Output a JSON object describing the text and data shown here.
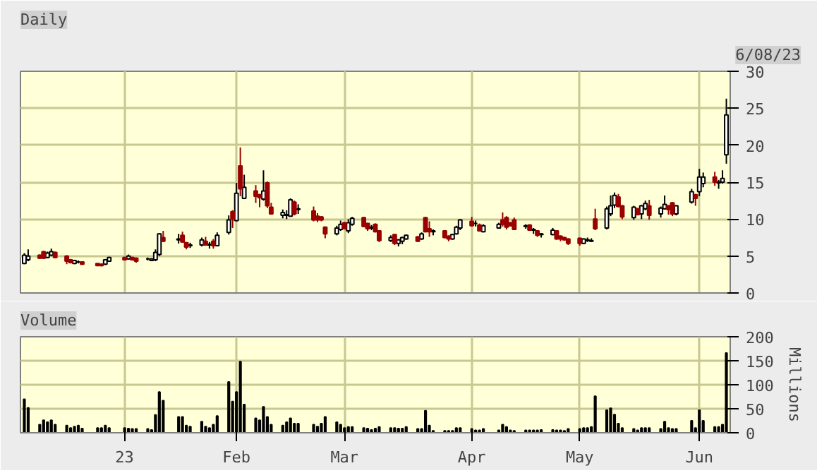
{
  "chart_data": [
    {
      "type": "candlestick",
      "title": "Daily",
      "annotations": [
        "6/08/23"
      ],
      "x": [
        "2022-12-08",
        "2022-12-09",
        "2022-12-12",
        "2022-12-13",
        "2022-12-14",
        "2022-12-15",
        "2022-12-16",
        "2022-12-19",
        "2022-12-20",
        "2022-12-21",
        "2022-12-22",
        "2022-12-23",
        "2022-12-27",
        "2022-12-28",
        "2022-12-29",
        "2022-12-30",
        "2023-01-03",
        "2023-01-04",
        "2023-01-05",
        "2023-01-06",
        "2023-01-09",
        "2023-01-10",
        "2023-01-11",
        "2023-01-12",
        "2023-01-13",
        "2023-01-17",
        "2023-01-18",
        "2023-01-19",
        "2023-01-20",
        "2023-01-23",
        "2023-01-24",
        "2023-01-25",
        "2023-01-26",
        "2023-01-27",
        "2023-01-30",
        "2023-01-31",
        "2023-02-01",
        "2023-02-02",
        "2023-02-03",
        "2023-02-06",
        "2023-02-07",
        "2023-02-08",
        "2023-02-09",
        "2023-02-10",
        "2023-02-13",
        "2023-02-14",
        "2023-02-15",
        "2023-02-16",
        "2023-02-17",
        "2023-02-21",
        "2023-02-22",
        "2023-02-23",
        "2023-02-24",
        "2023-02-27",
        "2023-02-28",
        "2023-03-01",
        "2023-03-02",
        "2023-03-03",
        "2023-03-06",
        "2023-03-07",
        "2023-03-08",
        "2023-03-09",
        "2023-03-10",
        "2023-03-13",
        "2023-03-14",
        "2023-03-15",
        "2023-03-16",
        "2023-03-17",
        "2023-03-20",
        "2023-03-21",
        "2023-03-22",
        "2023-03-23",
        "2023-03-24",
        "2023-03-27",
        "2023-03-28",
        "2023-03-29",
        "2023-03-30",
        "2023-03-31",
        "2023-04-03",
        "2023-04-04",
        "2023-04-05",
        "2023-04-06",
        "2023-04-10",
        "2023-04-11",
        "2023-04-12",
        "2023-04-13",
        "2023-04-14",
        "2023-04-17",
        "2023-04-18",
        "2023-04-19",
        "2023-04-20",
        "2023-04-21",
        "2023-04-24",
        "2023-04-25",
        "2023-04-26",
        "2023-04-27",
        "2023-04-28",
        "2023-05-01",
        "2023-05-02",
        "2023-05-03",
        "2023-05-04",
        "2023-05-05",
        "2023-05-08",
        "2023-05-09",
        "2023-05-10",
        "2023-05-11",
        "2023-05-12",
        "2023-05-15",
        "2023-05-16",
        "2023-05-17",
        "2023-05-18",
        "2023-05-19",
        "2023-05-22",
        "2023-05-23",
        "2023-05-24",
        "2023-05-25",
        "2023-05-26",
        "2023-05-30",
        "2023-05-31",
        "2023-06-01",
        "2023-06-02",
        "2023-06-05",
        "2023-06-06",
        "2023-06-07",
        "2023-06-08"
      ],
      "ohlc": [
        [
          4.0,
          5.4,
          3.9,
          5.1
        ],
        [
          4.5,
          5.9,
          4.3,
          5.0
        ],
        [
          5.1,
          5.2,
          4.6,
          4.7
        ],
        [
          5.6,
          5.7,
          4.6,
          4.7
        ],
        [
          4.8,
          5.6,
          4.7,
          5.4
        ],
        [
          5.1,
          6.0,
          5.0,
          5.6
        ],
        [
          5.5,
          5.6,
          4.7,
          4.8
        ],
        [
          5.0,
          5.1,
          3.9,
          4.3
        ],
        [
          4.5,
          4.6,
          4.0,
          4.1
        ],
        [
          4.0,
          4.5,
          3.9,
          4.4
        ],
        [
          4.2,
          4.4,
          4.0,
          4.2
        ],
        [
          4.2,
          4.2,
          3.9,
          3.9
        ],
        [
          4.0,
          4.0,
          3.7,
          3.7
        ],
        [
          3.9,
          4.0,
          3.6,
          3.7
        ],
        [
          3.9,
          4.6,
          3.8,
          4.5
        ],
        [
          4.3,
          4.9,
          4.2,
          4.8
        ],
        [
          4.8,
          4.9,
          4.4,
          4.5
        ],
        [
          4.6,
          5.2,
          4.5,
          5.0
        ],
        [
          4.8,
          4.9,
          4.4,
          4.5
        ],
        [
          4.7,
          4.8,
          4.1,
          4.3
        ],
        [
          4.6,
          4.8,
          4.4,
          4.6
        ],
        [
          4.4,
          4.7,
          4.3,
          4.6
        ],
        [
          4.5,
          5.9,
          4.3,
          5.5
        ],
        [
          5.2,
          8.1,
          5.0,
          8.0
        ],
        [
          7.5,
          8.4,
          6.9,
          7.0
        ],
        [
          7.2,
          8.0,
          6.7,
          7.3
        ],
        [
          7.8,
          8.3,
          6.8,
          6.9
        ],
        [
          6.8,
          6.9,
          5.9,
          6.2
        ],
        [
          6.4,
          6.8,
          6.1,
          6.5
        ],
        [
          6.5,
          7.5,
          6.3,
          7.2
        ],
        [
          7.0,
          7.6,
          6.4,
          6.5
        ],
        [
          6.5,
          6.9,
          6.0,
          6.6
        ],
        [
          7.0,
          7.3,
          6.0,
          6.4
        ],
        [
          6.4,
          8.2,
          6.3,
          7.8
        ],
        [
          8.2,
          10.5,
          7.9,
          9.9
        ],
        [
          11.0,
          11.2,
          8.8,
          10.0
        ],
        [
          9.8,
          14.9,
          9.7,
          13.5
        ],
        [
          17.2,
          19.7,
          13.1,
          14.1
        ],
        [
          12.8,
          16.0,
          12.7,
          14.3
        ],
        [
          13.8,
          14.6,
          12.2,
          13.1
        ],
        [
          13.3,
          13.4,
          11.6,
          12.9
        ],
        [
          12.7,
          16.6,
          12.5,
          13.8
        ],
        [
          14.9,
          15.1,
          11.5,
          11.8
        ],
        [
          11.6,
          12.2,
          10.6,
          10.7
        ],
        [
          10.5,
          11.3,
          10.1,
          10.9
        ],
        [
          10.5,
          11.2,
          10.0,
          10.6
        ],
        [
          10.4,
          12.8,
          10.3,
          12.6
        ],
        [
          12.3,
          12.5,
          10.5,
          10.7
        ],
        [
          11.3,
          12.0,
          10.7,
          11.4
        ],
        [
          11.1,
          11.7,
          9.7,
          9.9
        ],
        [
          10.4,
          10.8,
          9.6,
          9.9
        ],
        [
          10.3,
          10.4,
          9.7,
          9.9
        ],
        [
          8.9,
          9.0,
          7.4,
          8.0
        ],
        [
          8.0,
          9.1,
          7.8,
          8.8
        ],
        [
          8.6,
          9.8,
          8.4,
          9.3
        ],
        [
          9.5,
          9.6,
          8.6,
          8.7
        ],
        [
          8.4,
          10.0,
          8.1,
          9.5
        ],
        [
          9.3,
          10.3,
          9.1,
          10.1
        ],
        [
          10.2,
          10.3,
          8.9,
          9.0
        ],
        [
          9.4,
          9.5,
          8.4,
          8.7
        ],
        [
          8.8,
          9.2,
          8.5,
          8.9
        ],
        [
          9.3,
          9.4,
          8.2,
          8.3
        ],
        [
          8.4,
          8.5,
          6.9,
          7.1
        ],
        [
          7.1,
          7.8,
          6.9,
          7.5
        ],
        [
          7.9,
          8.0,
          6.5,
          6.7
        ],
        [
          6.7,
          7.3,
          6.3,
          7.2
        ],
        [
          7.0,
          7.6,
          6.6,
          7.5
        ],
        [
          7.3,
          7.9,
          7.2,
          7.8
        ],
        [
          7.6,
          7.7,
          6.9,
          7.0
        ],
        [
          7.3,
          8.2,
          7.2,
          8.0
        ],
        [
          10.2,
          10.3,
          8.2,
          8.3
        ],
        [
          8.7,
          9.7,
          7.6,
          8.3
        ],
        [
          8.3,
          8.6,
          7.8,
          8.4
        ],
        [
          8.4,
          8.5,
          7.4,
          7.5
        ],
        [
          7.7,
          7.8,
          7.0,
          7.3
        ],
        [
          7.3,
          8.0,
          7.2,
          7.9
        ],
        [
          8.0,
          9.1,
          7.9,
          8.9
        ],
        [
          8.8,
          10.0,
          8.5,
          9.9
        ],
        [
          9.7,
          10.3,
          9.0,
          9.1
        ],
        [
          9.4,
          9.8,
          9.0,
          9.4
        ],
        [
          9.2,
          9.4,
          8.3,
          8.4
        ],
        [
          8.3,
          9.3,
          8.2,
          9.1
        ],
        [
          8.8,
          9.5,
          8.7,
          9.3
        ],
        [
          9.9,
          10.9,
          9.0,
          9.3
        ],
        [
          10.2,
          10.4,
          8.6,
          8.9
        ],
        [
          9.5,
          9.6,
          9.0,
          9.1
        ],
        [
          9.9,
          10.2,
          8.5,
          8.6
        ],
        [
          9.0,
          9.3,
          8.7,
          9.1
        ],
        [
          9.2,
          9.3,
          8.4,
          8.5
        ],
        [
          8.5,
          8.8,
          8.0,
          8.6
        ],
        [
          8.4,
          8.5,
          7.6,
          7.8
        ],
        [
          7.9,
          8.1,
          7.5,
          8.0
        ],
        [
          7.9,
          8.8,
          7.8,
          8.5
        ],
        [
          8.4,
          8.5,
          7.2,
          7.3
        ],
        [
          7.7,
          7.8,
          7.0,
          7.3
        ],
        [
          7.5,
          7.6,
          7.1,
          7.2
        ],
        [
          7.3,
          7.4,
          6.5,
          6.7
        ],
        [
          7.4,
          7.5,
          6.4,
          6.7
        ],
        [
          6.7,
          7.4,
          6.6,
          7.3
        ],
        [
          7.1,
          7.5,
          6.9,
          7.2
        ],
        [
          7.0,
          7.4,
          6.9,
          7.1
        ],
        [
          10.0,
          11.4,
          8.5,
          8.7
        ],
        [
          8.8,
          11.7,
          8.6,
          11.4
        ],
        [
          10.7,
          13.2,
          10.4,
          11.8
        ],
        [
          11.9,
          13.6,
          11.5,
          13.2
        ],
        [
          13.0,
          13.4,
          11.6,
          11.7
        ],
        [
          11.8,
          11.9,
          10.0,
          10.3
        ],
        [
          10.2,
          11.8,
          9.9,
          11.6
        ],
        [
          11.4,
          11.5,
          10.5,
          10.6
        ],
        [
          10.7,
          11.9,
          10.0,
          11.8
        ],
        [
          11.4,
          12.5,
          11.2,
          12.1
        ],
        [
          11.8,
          12.6,
          9.9,
          10.5
        ],
        [
          10.7,
          11.7,
          10.2,
          11.5
        ],
        [
          11.4,
          13.2,
          11.3,
          12.0
        ],
        [
          11.8,
          11.9,
          10.6,
          11.3
        ],
        [
          12.2,
          12.3,
          10.4,
          10.7
        ],
        [
          10.7,
          11.9,
          10.5,
          11.8
        ],
        [
          12.3,
          14.1,
          12.1,
          13.7
        ],
        [
          13.3,
          13.4,
          11.8,
          12.8
        ],
        [
          13.7,
          16.8,
          13.1,
          15.7
        ],
        [
          14.8,
          16.3,
          14.3,
          15.7
        ],
        [
          15.7,
          16.4,
          14.5,
          15.0
        ],
        [
          14.9,
          15.3,
          14.1,
          15.0
        ],
        [
          15.0,
          16.6,
          14.8,
          15.5
        ],
        [
          18.7,
          26.3,
          17.5,
          24.1
        ]
      ],
      "xlim": [
        "2022-12-07",
        "2023-06-09"
      ],
      "xticks": [
        {
          "value": "2023-01-03",
          "label": null
        },
        {
          "value": "2023-02-01",
          "label": null
        },
        {
          "value": "2023-03-01",
          "label": null
        },
        {
          "value": "2023-04-03",
          "label": null
        },
        {
          "value": "2023-05-01",
          "label": null
        },
        {
          "value": "2023-06-01",
          "label": null
        }
      ],
      "ylim": [
        0,
        30
      ],
      "yticks": [
        0,
        5,
        10,
        15,
        20,
        25,
        30
      ],
      "grid": true,
      "tick_labels": "y"
    },
    {
      "type": "bar",
      "title": "Volume",
      "ylabel": "Millions",
      "series": [
        {
          "color": "#000000",
          "values": [
            70,
            52,
            17,
            26,
            22,
            26,
            17,
            15,
            10,
            13,
            15,
            9,
            10,
            10,
            15,
            10,
            10,
            9,
            8,
            8,
            8,
            6,
            37,
            85,
            67,
            33,
            33,
            15,
            13,
            23,
            13,
            10,
            17,
            35,
            106,
            65,
            85,
            148,
            59,
            30,
            26,
            54,
            33,
            17,
            15,
            22,
            30,
            19,
            19,
            17,
            13,
            19,
            33,
            22,
            17,
            10,
            12,
            12,
            10,
            9,
            6,
            9,
            12,
            10,
            10,
            9,
            9,
            12,
            8,
            8,
            46,
            15,
            4,
            4,
            4,
            4,
            10,
            10,
            8,
            5,
            5,
            8,
            5,
            17,
            12,
            5,
            4,
            5,
            5,
            5,
            5,
            6,
            6,
            5,
            5,
            4,
            8,
            8,
            10,
            10,
            12,
            76,
            47,
            51,
            38,
            19,
            10,
            8,
            5,
            10,
            10,
            10,
            8,
            23,
            10,
            8,
            8,
            25,
            10,
            47,
            25,
            12,
            12,
            17,
            166
          ]
        }
      ],
      "x": [
        "2022-12-08",
        "2022-12-09",
        "2022-12-12",
        "2022-12-13",
        "2022-12-14",
        "2022-12-15",
        "2022-12-16",
        "2022-12-19",
        "2022-12-20",
        "2022-12-21",
        "2022-12-22",
        "2022-12-23",
        "2022-12-27",
        "2022-12-28",
        "2022-12-29",
        "2022-12-30",
        "2023-01-03",
        "2023-01-04",
        "2023-01-05",
        "2023-01-06",
        "2023-01-09",
        "2023-01-10",
        "2023-01-11",
        "2023-01-12",
        "2023-01-13",
        "2023-01-17",
        "2023-01-18",
        "2023-01-19",
        "2023-01-20",
        "2023-01-23",
        "2023-01-24",
        "2023-01-25",
        "2023-01-26",
        "2023-01-27",
        "2023-01-30",
        "2023-01-31",
        "2023-02-01",
        "2023-02-02",
        "2023-02-03",
        "2023-02-06",
        "2023-02-07",
        "2023-02-08",
        "2023-02-09",
        "2023-02-10",
        "2023-02-13",
        "2023-02-14",
        "2023-02-15",
        "2023-02-16",
        "2023-02-17",
        "2023-02-21",
        "2023-02-22",
        "2023-02-23",
        "2023-02-24",
        "2023-02-27",
        "2023-02-28",
        "2023-03-01",
        "2023-03-02",
        "2023-03-03",
        "2023-03-06",
        "2023-03-07",
        "2023-03-08",
        "2023-03-09",
        "2023-03-10",
        "2023-03-13",
        "2023-03-14",
        "2023-03-15",
        "2023-03-16",
        "2023-03-17",
        "2023-03-20",
        "2023-03-21",
        "2023-03-22",
        "2023-03-23",
        "2023-03-24",
        "2023-03-27",
        "2023-03-28",
        "2023-03-29",
        "2023-03-30",
        "2023-03-31",
        "2023-04-03",
        "2023-04-04",
        "2023-04-05",
        "2023-04-06",
        "2023-04-10",
        "2023-04-11",
        "2023-04-12",
        "2023-04-13",
        "2023-04-14",
        "2023-04-17",
        "2023-04-18",
        "2023-04-19",
        "2023-04-20",
        "2023-04-21",
        "2023-04-24",
        "2023-04-25",
        "2023-04-26",
        "2023-04-27",
        "2023-04-28",
        "2023-05-01",
        "2023-05-02",
        "2023-05-03",
        "2023-05-04",
        "2023-05-05",
        "2023-05-08",
        "2023-05-09",
        "2023-05-10",
        "2023-05-11",
        "2023-05-12",
        "2023-05-15",
        "2023-05-16",
        "2023-05-17",
        "2023-05-18",
        "2023-05-19",
        "2023-05-22",
        "2023-05-23",
        "2023-05-24",
        "2023-05-25",
        "2023-05-26",
        "2023-05-30",
        "2023-05-31",
        "2023-06-01",
        "2023-06-02",
        "2023-06-05",
        "2023-06-06",
        "2023-06-07",
        "2023-06-08"
      ],
      "xlim": [
        "2022-12-07",
        "2023-06-09"
      ],
      "xticks": [
        {
          "value": "2023-01-03",
          "label": "23"
        },
        {
          "value": "2023-02-01",
          "label": "Feb"
        },
        {
          "value": "2023-03-01",
          "label": "Mar"
        },
        {
          "value": "2023-04-03",
          "label": "Apr"
        },
        {
          "value": "2023-05-01",
          "label": "May"
        },
        {
          "value": "2023-06-01",
          "label": "Jun"
        }
      ],
      "ylim": [
        0,
        200
      ],
      "yticks": [
        0,
        50,
        100,
        150,
        200
      ],
      "grid": true
    }
  ]
}
